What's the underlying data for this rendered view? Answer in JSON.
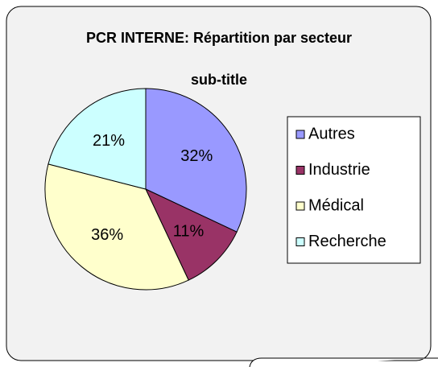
{
  "chart_data": {
    "type": "pie",
    "title": "PCR INTERNE: Répartition par secteur",
    "subtitle": "sub-title",
    "categories": [
      "Autres",
      "Industrie",
      "Médical",
      "Recherche"
    ],
    "values": [
      32,
      11,
      36,
      21
    ],
    "value_labels": [
      "32%",
      "11%",
      "36%",
      "21%"
    ],
    "colors": [
      "#9999ff",
      "#993366",
      "#ffffcc",
      "#ccffff"
    ],
    "legend": "right"
  }
}
